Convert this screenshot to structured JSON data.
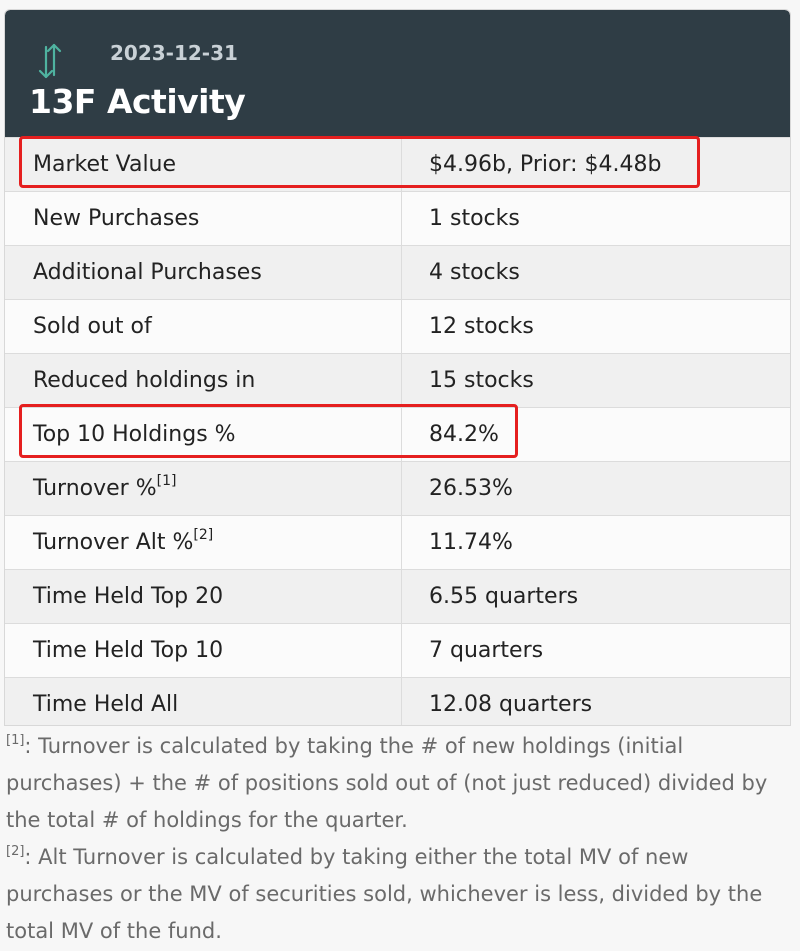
{
  "header": {
    "date": "2023-12-31",
    "title": "13F Activity",
    "icon": "up-down-arrows-icon"
  },
  "rows": [
    {
      "label": "Market Value",
      "sup": "",
      "value": "$4.96b, Prior: $4.48b"
    },
    {
      "label": "New Purchases",
      "sup": "",
      "value": "1 stocks"
    },
    {
      "label": "Additional Purchases",
      "sup": "",
      "value": "4 stocks"
    },
    {
      "label": "Sold out of",
      "sup": "",
      "value": "12 stocks"
    },
    {
      "label": "Reduced holdings in",
      "sup": "",
      "value": "15 stocks"
    },
    {
      "label": "Top 10 Holdings %",
      "sup": "",
      "value": "84.2%"
    },
    {
      "label": "Turnover %",
      "sup": "[1]",
      "value": "26.53%"
    },
    {
      "label": "Turnover Alt %",
      "sup": "[2]",
      "value": "11.74%"
    },
    {
      "label": "Time Held Top 20",
      "sup": "",
      "value": "6.55 quarters"
    },
    {
      "label": "Time Held Top 10",
      "sup": "",
      "value": "7 quarters"
    },
    {
      "label": "Time Held All",
      "sup": "",
      "value": "12.08 quarters"
    }
  ],
  "footnotes": [
    {
      "mark": "[1]",
      "text": ": Turnover is calculated by taking the # of new holdings (initial purchases) + the # of positions sold out of (not just reduced) divided by the total # of holdings for the quarter."
    },
    {
      "mark": "[2]",
      "text": ": Alt Turnover is calculated by taking either the total MV of new purchases or the MV of securities sold, whichever is less, divided by the total MV of the fund."
    }
  ],
  "colors": {
    "header_bg": "#2f3d45",
    "highlight": "#e51f1f",
    "icon_accent": "#4fb3a0"
  }
}
